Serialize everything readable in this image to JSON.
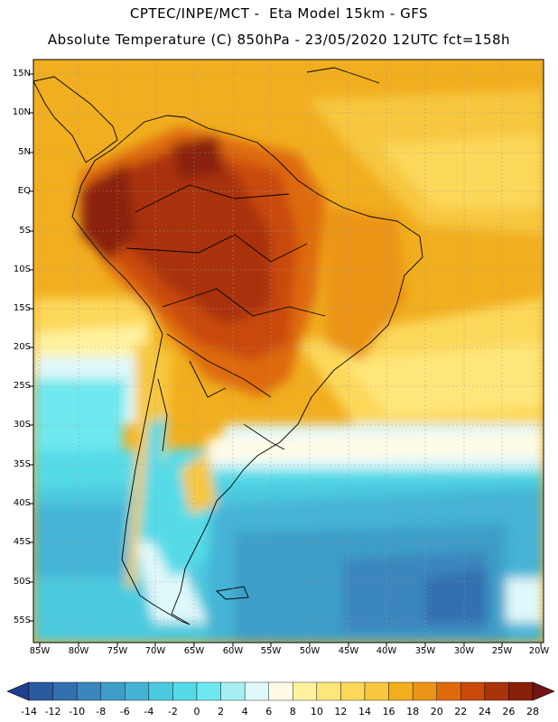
{
  "header": {
    "line1": "CPTEC/INPE/MCT -  Eta Model 15km - GFS",
    "line2": "Absolute Temperature (C) 850hPa - 23/05/2020 12UTC fct=158h"
  },
  "map": {
    "lat_labels": [
      "15N",
      "10N",
      "5N",
      "EQ",
      "5S",
      "10S",
      "15S",
      "20S",
      "25S",
      "30S",
      "35S",
      "40S",
      "45S",
      "50S",
      "55S"
    ],
    "lon_labels": [
      "85W",
      "80W",
      "75W",
      "70W",
      "65W",
      "60W",
      "55W",
      "50W",
      "45W",
      "40W",
      "35W",
      "30W",
      "25W",
      "20W"
    ],
    "field": "temperature",
    "level": "850hPa",
    "units": "C"
  },
  "colorbar": {
    "levels": [
      "-14",
      "-12",
      "-10",
      "-8",
      "-6",
      "-4",
      "-2",
      "0",
      "2",
      "4",
      "6",
      "8",
      "10",
      "12",
      "14",
      "16",
      "18",
      "20",
      "22",
      "24",
      "26",
      "28"
    ],
    "colors": [
      "#1f3f8f",
      "#2a5aa0",
      "#3370b0",
      "#3a86bd",
      "#3e9ec9",
      "#44b4d6",
      "#4ccadf",
      "#55dbe8",
      "#6ee8ee",
      "#a6f0f4",
      "#dff8fa",
      "#fffbe6",
      "#fff3a0",
      "#ffe67a",
      "#fcd85a",
      "#f7c73f",
      "#f1ae1f",
      "#eb9418",
      "#de6a0c",
      "#c94a0a",
      "#a9330a",
      "#8a200a",
      "#741515"
    ]
  }
}
